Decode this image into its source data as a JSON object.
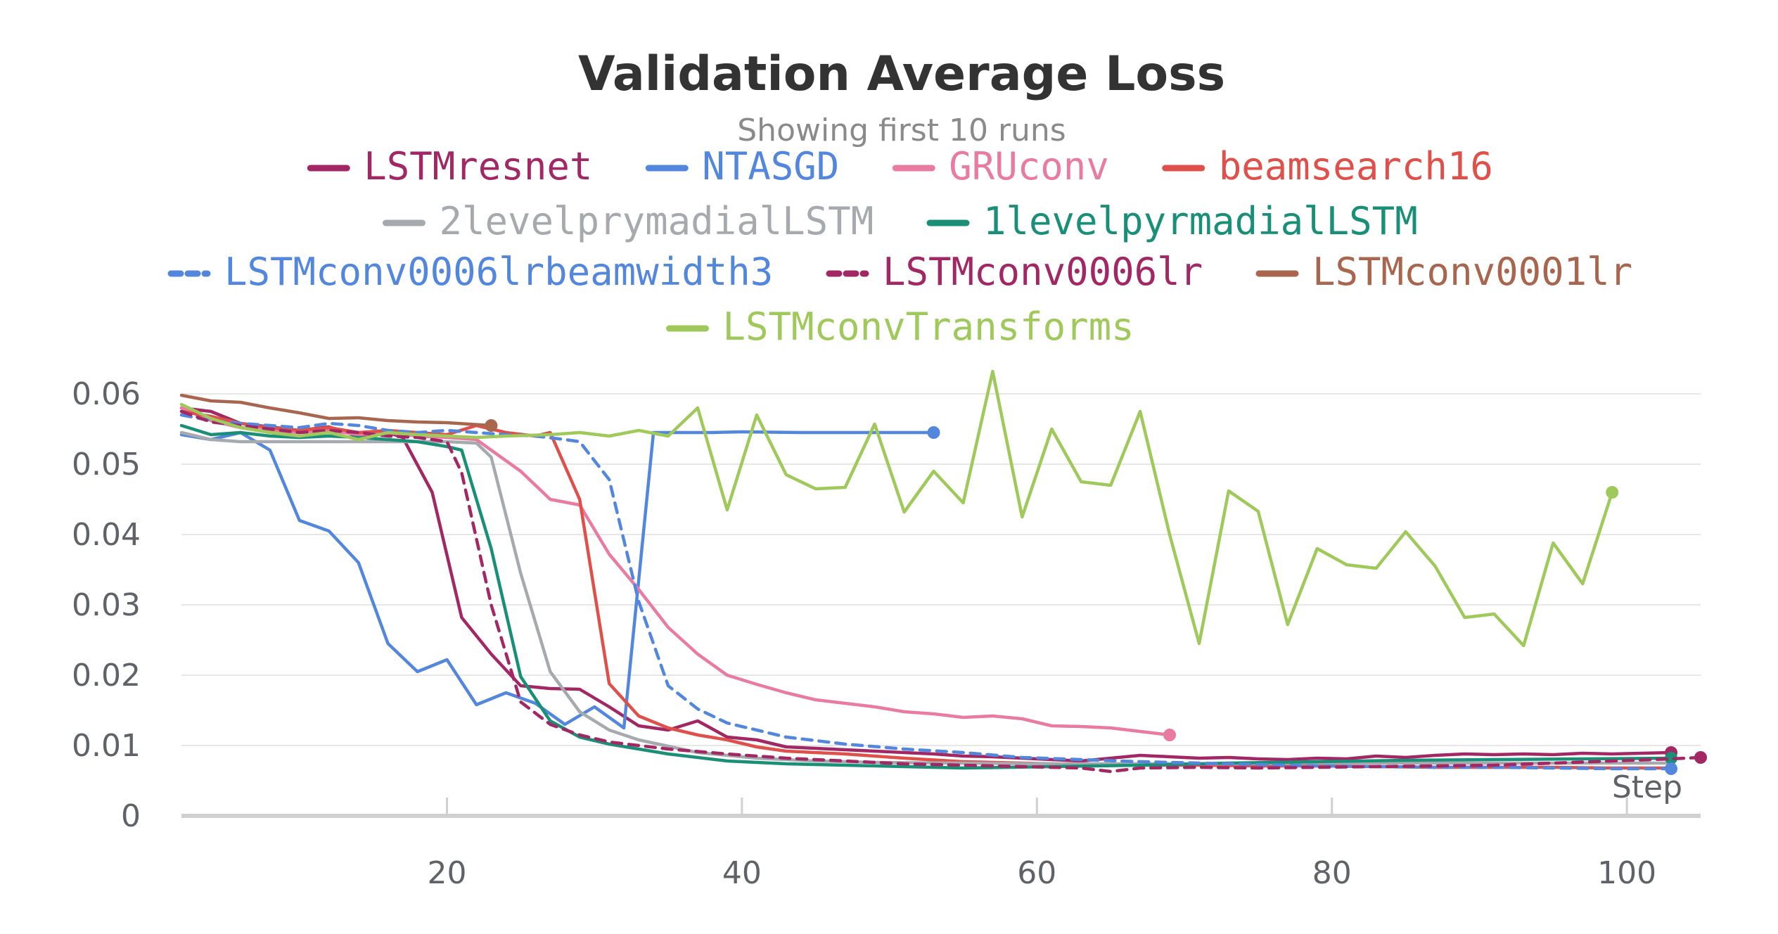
{
  "chart_data": {
    "type": "line",
    "title": "Validation Average Loss",
    "subtitle": "Showing first 10 runs",
    "xlabel": "Step",
    "ylabel": "",
    "xlim": [
      2,
      105
    ],
    "ylim": [
      0,
      0.062
    ],
    "x_ticks": [
      20,
      40,
      60,
      80,
      100
    ],
    "y_ticks": [
      0,
      0.01,
      0.02,
      0.03,
      0.04,
      0.05,
      0.06
    ],
    "y_tick_labels": [
      "0",
      "0.01",
      "0.02",
      "0.03",
      "0.04",
      "0.05",
      "0.06"
    ],
    "grid": true,
    "legend_position": "top",
    "series": [
      {
        "name": "LSTMresnet",
        "color": "#a12864",
        "dash": false,
        "x": [
          2,
          4,
          6,
          8,
          10,
          12,
          14,
          16,
          17,
          19,
          21,
          23,
          25,
          27,
          29,
          31,
          33,
          35,
          37,
          39,
          41,
          43,
          45,
          47,
          49,
          51,
          53,
          55,
          57,
          59,
          61,
          63,
          65,
          67,
          69,
          71,
          73,
          75,
          77,
          79,
          81,
          83,
          85,
          87,
          89,
          91,
          93,
          95,
          97,
          99,
          101,
          103
        ],
        "y": [
          0.058,
          0.0575,
          0.0558,
          0.0553,
          0.0548,
          0.0553,
          0.054,
          0.0545,
          0.0538,
          0.046,
          0.0282,
          0.023,
          0.0185,
          0.0181,
          0.018,
          0.0155,
          0.0128,
          0.0122,
          0.0135,
          0.0112,
          0.0108,
          0.0098,
          0.0096,
          0.0094,
          0.0092,
          0.009,
          0.0088,
          0.0085,
          0.0084,
          0.0082,
          0.008,
          0.0078,
          0.0082,
          0.0086,
          0.0084,
          0.0082,
          0.0083,
          0.0081,
          0.008,
          0.0082,
          0.0081,
          0.0085,
          0.0083,
          0.0086,
          0.0088,
          0.0087,
          0.0088,
          0.0087,
          0.0089,
          0.0088,
          0.0089,
          0.009
        ],
        "end_marker": true
      },
      {
        "name": "NTASGD",
        "color": "#5387dd",
        "dash": false,
        "x": [
          2,
          4,
          6,
          8,
          10,
          12,
          14,
          16,
          18,
          20,
          22,
          24,
          26,
          28,
          30,
          32,
          34,
          36,
          38,
          40,
          44,
          48,
          53
        ],
        "y": [
          0.0542,
          0.0535,
          0.0545,
          0.052,
          0.042,
          0.0405,
          0.036,
          0.0245,
          0.0205,
          0.0222,
          0.0158,
          0.0175,
          0.016,
          0.013,
          0.0155,
          0.0125,
          0.0545,
          0.0545,
          0.0545,
          0.0546,
          0.0545,
          0.0545,
          0.0545
        ],
        "end_marker": true
      },
      {
        "name": "GRUconv",
        "color": "#e87b9f",
        "dash": false,
        "x": [
          2,
          4,
          6,
          8,
          10,
          12,
          14,
          16,
          18,
          20,
          22,
          23,
          25,
          27,
          29,
          31,
          33,
          35,
          37,
          39,
          41,
          43,
          45,
          47,
          49,
          51,
          53,
          55,
          57,
          59,
          61,
          63,
          65,
          67,
          69
        ],
        "y": [
          0.058,
          0.0562,
          0.0552,
          0.0548,
          0.0545,
          0.0548,
          0.0542,
          0.0545,
          0.054,
          0.0538,
          0.0535,
          0.052,
          0.049,
          0.045,
          0.0442,
          0.0372,
          0.0322,
          0.0268,
          0.023,
          0.02,
          0.0187,
          0.0175,
          0.0165,
          0.016,
          0.0155,
          0.0148,
          0.0145,
          0.014,
          0.0142,
          0.0138,
          0.0128,
          0.0127,
          0.0125,
          0.012,
          0.0115
        ],
        "end_marker": true
      },
      {
        "name": "beamsearch16",
        "color": "#e0504a",
        "dash": false,
        "x": [
          2,
          4,
          6,
          8,
          10,
          12,
          14,
          16,
          18,
          20,
          22,
          24,
          26,
          27,
          29,
          31,
          33,
          35,
          37,
          39,
          41,
          43,
          47,
          51,
          55,
          59,
          63,
          67,
          71,
          75,
          79,
          83,
          87,
          91,
          95,
          99,
          103
        ],
        "y": [
          0.0575,
          0.0568,
          0.0558,
          0.0552,
          0.0548,
          0.0552,
          0.0545,
          0.0548,
          0.0545,
          0.0542,
          0.0555,
          0.0545,
          0.054,
          0.0545,
          0.045,
          0.0188,
          0.0142,
          0.0125,
          0.0115,
          0.0108,
          0.0098,
          0.0092,
          0.0088,
          0.0082,
          0.0077,
          0.0075,
          0.0073,
          0.0072,
          0.0072,
          0.0071,
          0.0071,
          0.007,
          0.0069,
          0.0069,
          0.0069,
          0.0068,
          0.0068
        ],
        "end_marker": false
      },
      {
        "name": "2levelprymadialLSTM",
        "color": "#a6a9ad",
        "dash": false,
        "x": [
          2,
          4,
          6,
          8,
          10,
          12,
          14,
          16,
          18,
          20,
          22,
          23,
          25,
          27,
          29,
          31,
          33,
          37,
          41,
          45,
          49,
          55,
          61,
          67,
          73,
          79,
          85,
          91,
          97,
          103
        ],
        "y": [
          0.0545,
          0.0535,
          0.0532,
          0.0532,
          0.0532,
          0.0532,
          0.0532,
          0.0532,
          0.0532,
          0.0532,
          0.053,
          0.051,
          0.0345,
          0.0205,
          0.0148,
          0.0122,
          0.0108,
          0.009,
          0.0082,
          0.0078,
          0.0076,
          0.0075,
          0.0074,
          0.0074,
          0.0074,
          0.0075,
          0.0075,
          0.0075,
          0.0075,
          0.0075
        ],
        "end_marker": false
      },
      {
        "name": "1levelpyrmadialLSTM",
        "color": "#1a8f77",
        "dash": false,
        "x": [
          2,
          4,
          6,
          8,
          10,
          12,
          14,
          16,
          18,
          20,
          21,
          23,
          25,
          27,
          29,
          31,
          35,
          39,
          43,
          47,
          51,
          55,
          61,
          67,
          73,
          79,
          85,
          91,
          97,
          103
        ],
        "y": [
          0.0555,
          0.0542,
          0.0545,
          0.054,
          0.0538,
          0.054,
          0.0538,
          0.0535,
          0.0532,
          0.0525,
          0.052,
          0.038,
          0.0198,
          0.0135,
          0.0112,
          0.0102,
          0.0088,
          0.0078,
          0.0074,
          0.0072,
          0.007,
          0.0068,
          0.007,
          0.0072,
          0.0075,
          0.0077,
          0.0079,
          0.008,
          0.0081,
          0.0082
        ],
        "end_marker": true
      },
      {
        "name": "LSTMconv0006lrbeamwidth3",
        "color": "#5387dd",
        "dash": true,
        "x": [
          2,
          4,
          6,
          8,
          10,
          12,
          14,
          16,
          18,
          20,
          22,
          24,
          26,
          28,
          29,
          31,
          33,
          35,
          37,
          39,
          41,
          43,
          47,
          51,
          55,
          59,
          63,
          67,
          71,
          75,
          79,
          83,
          87,
          91,
          95,
          99,
          103
        ],
        "y": [
          0.057,
          0.0562,
          0.0558,
          0.0555,
          0.0552,
          0.0558,
          0.0555,
          0.0548,
          0.0545,
          0.0548,
          0.0545,
          0.0542,
          0.054,
          0.0535,
          0.0532,
          0.0478,
          0.0305,
          0.0185,
          0.0152,
          0.0132,
          0.0122,
          0.0112,
          0.0102,
          0.0095,
          0.009,
          0.0083,
          0.008,
          0.0077,
          0.0075,
          0.0073,
          0.0071,
          0.007,
          0.0069,
          0.0069,
          0.0068,
          0.0067,
          0.0067
        ],
        "end_marker": true
      },
      {
        "name": "LSTMconv0006lr",
        "color": "#a12864",
        "dash": true,
        "x": [
          2,
          4,
          6,
          8,
          10,
          12,
          14,
          16,
          18,
          20,
          21,
          23,
          25,
          27,
          29,
          31,
          35,
          39,
          43,
          47,
          51,
          55,
          59,
          63,
          65,
          67,
          71,
          75,
          79,
          83,
          87,
          91,
          95,
          99,
          103,
          105
        ],
        "y": [
          0.0575,
          0.056,
          0.0555,
          0.055,
          0.0545,
          0.0548,
          0.0545,
          0.054,
          0.0538,
          0.0532,
          0.0488,
          0.03,
          0.0162,
          0.013,
          0.0115,
          0.0105,
          0.0095,
          0.0088,
          0.0082,
          0.0078,
          0.0074,
          0.0072,
          0.007,
          0.0068,
          0.0063,
          0.0068,
          0.0069,
          0.0068,
          0.0069,
          0.007,
          0.0071,
          0.0072,
          0.0075,
          0.0078,
          0.0081,
          0.0083
        ],
        "end_marker": true
      },
      {
        "name": "LSTMconv0001lr",
        "color": "#a8664e",
        "dash": false,
        "x": [
          2,
          4,
          6,
          8,
          10,
          12,
          14,
          16,
          18,
          20,
          23
        ],
        "y": [
          0.0598,
          0.059,
          0.0588,
          0.058,
          0.0573,
          0.0565,
          0.0566,
          0.0562,
          0.056,
          0.0559,
          0.0555
        ],
        "end_marker": true
      },
      {
        "name": "LSTMconvTransforms",
        "color": "#9fc95a",
        "dash": false,
        "x": [
          2,
          4,
          6,
          8,
          10,
          12,
          14,
          16,
          18,
          20,
          22,
          24,
          27,
          29,
          31,
          33,
          35,
          37,
          39,
          41,
          43,
          45,
          47,
          49,
          51,
          53,
          55,
          57,
          59,
          61,
          63,
          65,
          67,
          69,
          71,
          73,
          75,
          77,
          79,
          81,
          83,
          85,
          87,
          89,
          91,
          93,
          95,
          97,
          99
        ],
        "y": [
          0.0585,
          0.0565,
          0.0552,
          0.0545,
          0.054,
          0.0545,
          0.0535,
          0.0545,
          0.0542,
          0.054,
          0.0538,
          0.054,
          0.0542,
          0.0545,
          0.054,
          0.0548,
          0.054,
          0.058,
          0.0435,
          0.057,
          0.0485,
          0.0465,
          0.0467,
          0.0557,
          0.0432,
          0.049,
          0.0445,
          0.0632,
          0.0425,
          0.055,
          0.0475,
          0.047,
          0.0575,
          0.04,
          0.0245,
          0.0462,
          0.0433,
          0.0272,
          0.038,
          0.0357,
          0.0352,
          0.0404,
          0.0355,
          0.0282,
          0.0287,
          0.0242,
          0.0388,
          0.033,
          0.046
        ],
        "end_marker": true
      }
    ]
  }
}
